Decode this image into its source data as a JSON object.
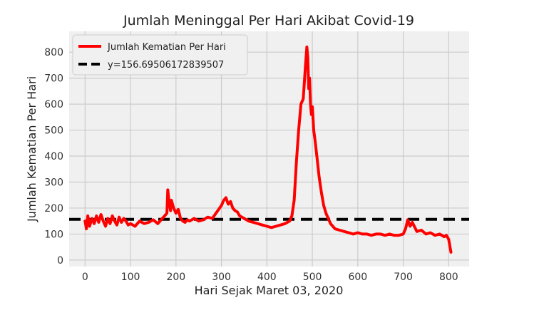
{
  "chart_data": {
    "type": "line",
    "title": "Jumlah Meninggal Per Hari Akibat Covid-19",
    "xlabel": "Hari Sejak Maret 03, 2020",
    "ylabel": "Jumlah Kematian Per Hari",
    "xlim": [
      -35,
      845
    ],
    "ylim": [
      -25,
      880
    ],
    "x_ticks": [
      0,
      100,
      200,
      300,
      400,
      500,
      600,
      700,
      800
    ],
    "y_ticks": [
      0,
      100,
      200,
      300,
      400,
      500,
      600,
      700,
      800
    ],
    "grid": true,
    "legend_position": "top-left",
    "colors": {
      "background": "#f0f0f0",
      "grid": "#cbcbcb",
      "series": "#ff0000",
      "mean": "#000000"
    },
    "series": [
      {
        "name": "Jumlah Kematian Per Hari",
        "x": [
          0,
          3,
          6,
          10,
          15,
          20,
          25,
          30,
          35,
          40,
          45,
          50,
          55,
          60,
          65,
          70,
          75,
          80,
          85,
          90,
          95,
          100,
          110,
          120,
          130,
          140,
          150,
          160,
          170,
          175,
          180,
          182,
          185,
          188,
          190,
          195,
          200,
          205,
          210,
          215,
          220,
          225,
          230,
          240,
          250,
          260,
          270,
          280,
          290,
          300,
          305,
          310,
          315,
          320,
          325,
          330,
          335,
          340,
          350,
          360,
          370,
          380,
          390,
          400,
          410,
          420,
          430,
          440,
          450,
          455,
          460,
          465,
          470,
          475,
          480,
          485,
          488,
          490,
          492,
          494,
          496,
          498,
          500,
          503,
          506,
          510,
          515,
          520,
          525,
          530,
          540,
          550,
          560,
          570,
          580,
          590,
          600,
          610,
          620,
          630,
          640,
          650,
          660,
          670,
          680,
          690,
          700,
          705,
          710,
          715,
          720,
          730,
          740,
          750,
          760,
          770,
          780,
          790,
          795,
          800,
          805
        ],
        "y": [
          150,
          120,
          170,
          130,
          160,
          140,
          170,
          145,
          175,
          150,
          130,
          160,
          140,
          170,
          150,
          135,
          165,
          145,
          160,
          150,
          135,
          140,
          130,
          150,
          140,
          145,
          155,
          140,
          160,
          170,
          180,
          270,
          220,
          190,
          230,
          200,
          180,
          195,
          160,
          150,
          145,
          155,
          150,
          160,
          150,
          155,
          165,
          160,
          185,
          210,
          230,
          240,
          215,
          225,
          200,
          190,
          185,
          170,
          160,
          150,
          145,
          140,
          135,
          130,
          125,
          130,
          135,
          140,
          150,
          170,
          230,
          380,
          500,
          600,
          620,
          750,
          820,
          780,
          660,
          700,
          600,
          560,
          590,
          500,
          460,
          400,
          320,
          260,
          210,
          180,
          140,
          120,
          115,
          110,
          105,
          100,
          105,
          100,
          100,
          95,
          100,
          100,
          95,
          100,
          95,
          95,
          100,
          120,
          155,
          130,
          145,
          110,
          115,
          100,
          105,
          95,
          100,
          90,
          95,
          80,
          30
        ]
      },
      {
        "name": "y=156.69506172839507",
        "value": 156.69506172839507,
        "style": "dashed"
      }
    ]
  }
}
